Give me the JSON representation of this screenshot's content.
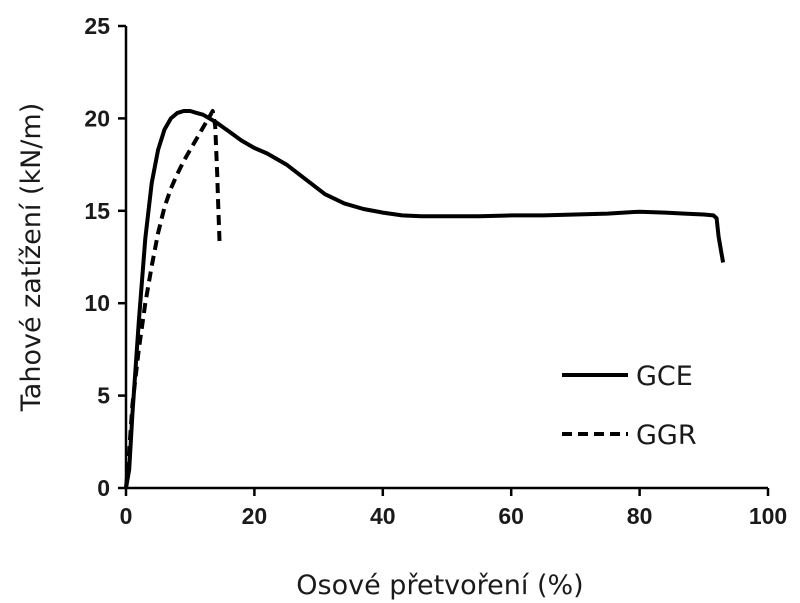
{
  "chart_data": {
    "type": "line",
    "title": "",
    "xlabel": "Osové přetvoření (%)",
    "ylabel": "Tahové zatížení (kN/m)",
    "xlim": [
      0,
      100
    ],
    "ylim": [
      0,
      25
    ],
    "xticks": [
      "0",
      "20",
      "40",
      "60",
      "80",
      "100"
    ],
    "yticks": [
      "0",
      "5",
      "10",
      "15",
      "20",
      "25"
    ],
    "grid": false,
    "legend_position": "bottom-right",
    "series": [
      {
        "name": "GCE",
        "style": "solid",
        "color": "#000000",
        "points": [
          [
            0,
            0
          ],
          [
            0.5,
            1
          ],
          [
            1,
            4
          ],
          [
            2,
            9
          ],
          [
            3,
            13.5
          ],
          [
            4,
            16.5
          ],
          [
            5,
            18.3
          ],
          [
            6,
            19.4
          ],
          [
            7,
            20
          ],
          [
            8,
            20.3
          ],
          [
            9,
            20.4
          ],
          [
            10,
            20.4
          ],
          [
            11,
            20.3
          ],
          [
            12,
            20.2
          ],
          [
            14,
            19.8
          ],
          [
            16,
            19.3
          ],
          [
            18,
            18.8
          ],
          [
            20,
            18.4
          ],
          [
            22,
            18.1
          ],
          [
            25,
            17.5
          ],
          [
            28,
            16.7
          ],
          [
            31,
            15.9
          ],
          [
            34,
            15.4
          ],
          [
            37,
            15.1
          ],
          [
            40,
            14.9
          ],
          [
            43,
            14.75
          ],
          [
            46,
            14.7
          ],
          [
            50,
            14.7
          ],
          [
            55,
            14.7
          ],
          [
            60,
            14.75
          ],
          [
            65,
            14.75
          ],
          [
            70,
            14.8
          ],
          [
            75,
            14.85
          ],
          [
            80,
            14.95
          ],
          [
            84,
            14.9
          ],
          [
            87,
            14.85
          ],
          [
            90,
            14.8
          ],
          [
            91.5,
            14.75
          ],
          [
            92,
            14.6
          ],
          [
            92.3,
            13.6
          ],
          [
            92.8,
            12.6
          ],
          [
            93,
            12.2
          ]
        ]
      },
      {
        "name": "GGR",
        "style": "dashed",
        "color": "#000000",
        "points": [
          [
            0,
            0
          ],
          [
            0.5,
            2
          ],
          [
            1,
            4.5
          ],
          [
            2,
            7.5
          ],
          [
            3,
            10
          ],
          [
            4,
            12
          ],
          [
            5,
            13.8
          ],
          [
            6,
            15.2
          ],
          [
            7,
            16.2
          ],
          [
            8,
            17
          ],
          [
            9,
            17.7
          ],
          [
            10,
            18.3
          ],
          [
            11,
            18.9
          ],
          [
            12,
            19.5
          ],
          [
            13,
            20.1
          ],
          [
            13.5,
            20.4
          ],
          [
            13.9,
            19.6
          ],
          [
            14.2,
            17
          ],
          [
            14.4,
            15
          ],
          [
            14.6,
            13.1
          ]
        ]
      }
    ]
  }
}
